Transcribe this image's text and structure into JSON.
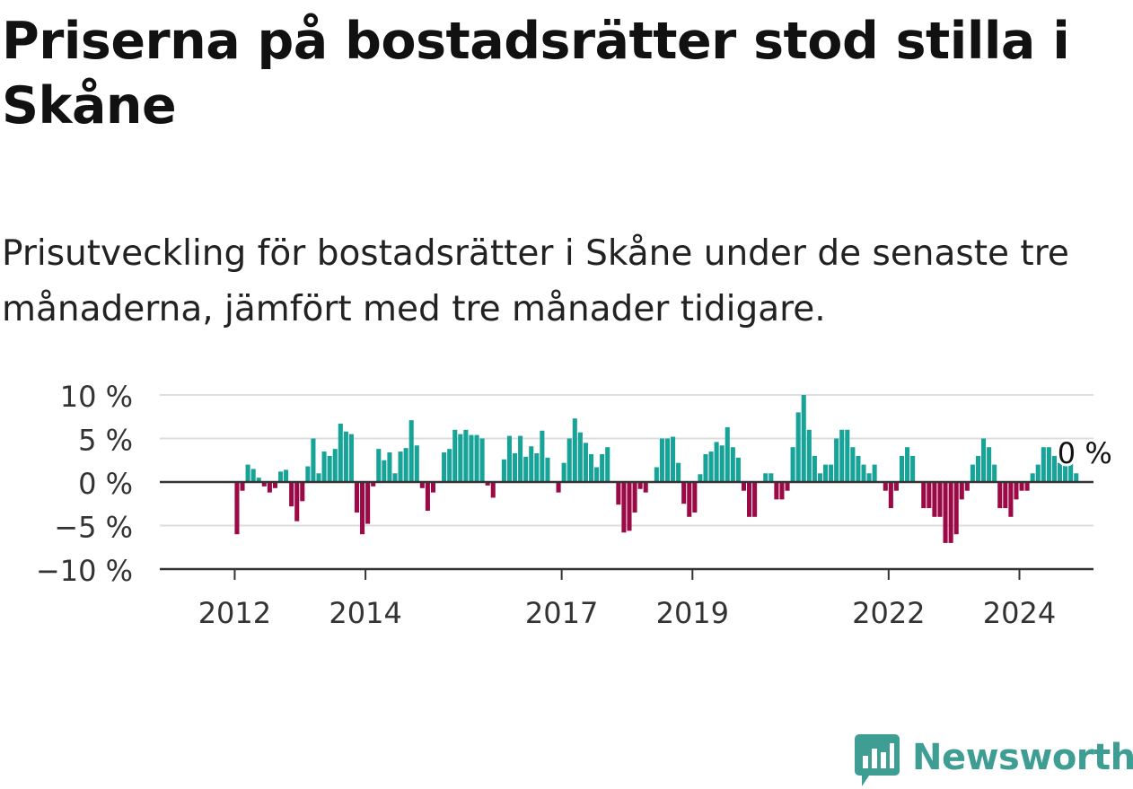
{
  "title": "Priserna på bostadsrätter stod stilla i Skåne",
  "subtitle": "Prisutveckling för bostadsrätter i Skåne under de senaste tre månaderna, jämfört med tre månader tidigare.",
  "brand": {
    "name": "Newsworthy",
    "icon": "newsworthy-logo-icon"
  },
  "colors": {
    "positive": "#17a397",
    "negative": "#9b0a47",
    "grid": "#dddddd",
    "axis": "#333333",
    "brand": "#3f9e94"
  },
  "chart_data": {
    "type": "bar",
    "title": "Priserna på bostadsrätter stod stilla i Skåne",
    "subtitle": "Prisutveckling för bostadsrätter i Skåne under de senaste tre månaderna, jämfört med tre månader tidigare.",
    "xlabel": "",
    "ylabel": "",
    "unit": "%",
    "ylim": [
      -10,
      10
    ],
    "yticks": [
      10,
      5,
      0,
      -5,
      -10
    ],
    "ytick_labels": [
      "10 %",
      "5 %",
      "0 %",
      "−5 %",
      "−10 %"
    ],
    "xticks": [
      "2012",
      "2014",
      "2017",
      "2019",
      "2022",
      "2024"
    ],
    "grid": true,
    "start": "2011-07",
    "end": "2024-12",
    "last_value_label": "0 %",
    "series": [
      {
        "values": [
          0,
          0,
          0,
          0,
          0,
          0,
          -6,
          -1,
          2,
          1.5,
          0.5,
          -0.5,
          -1.2,
          -0.7,
          1.2,
          1.4,
          -2.8,
          -4.5,
          -2.2,
          1.8,
          5,
          1,
          3.5,
          3,
          3.8,
          6.7,
          5.8,
          5.5,
          -3.5,
          -6,
          -4.8,
          -0.5,
          3.8,
          2.5,
          3.4,
          1,
          3.5,
          3.9,
          7.1,
          4.2,
          -0.7,
          -3.3,
          -1.2,
          0,
          3.4,
          3.8,
          6,
          5.5,
          6,
          5.4,
          5.4,
          5,
          -0.4,
          -1.8,
          0,
          2.6,
          5.3,
          3.3,
          5.3,
          2.9,
          4.1,
          3.3,
          5.9,
          2.8,
          0,
          -1.2,
          2.2,
          5,
          7.3,
          5.7,
          4.5,
          3.2,
          1.7,
          3.2,
          4,
          0,
          -2.6,
          -5.8,
          -5.6,
          -3.5,
          -0.8,
          -1.2,
          0,
          1.7,
          5,
          5,
          5.2,
          2.2,
          -2.5,
          -4,
          -3.5,
          0.9,
          3.2,
          3.5,
          4.6,
          4.2,
          6.3,
          4,
          2.8,
          -1,
          -4,
          -4,
          0,
          1,
          1,
          -2,
          -2,
          -1,
          4,
          8,
          10,
          6,
          3,
          1,
          2,
          2,
          5,
          6,
          6,
          4,
          3,
          2,
          1,
          2,
          0,
          -1,
          -3,
          -1,
          3,
          4,
          3,
          0,
          -3,
          -3,
          -4,
          -4,
          -7,
          -7,
          -6,
          -2,
          -1,
          2,
          3,
          5,
          4,
          2,
          -3,
          -3,
          -4,
          -2,
          -1,
          -1,
          1,
          2,
          4,
          4,
          3,
          2.2,
          2,
          2.4,
          1,
          0
        ]
      }
    ]
  }
}
